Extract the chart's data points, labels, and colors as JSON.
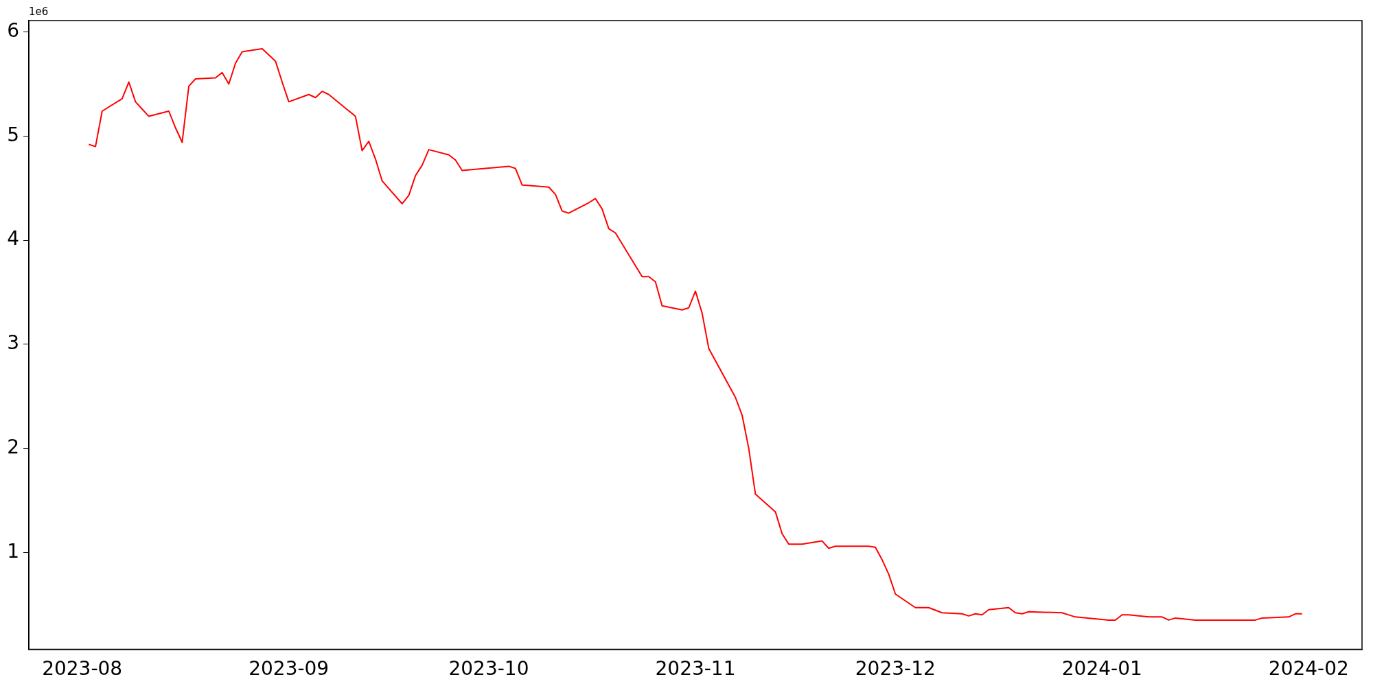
{
  "chart_data": {
    "type": "line",
    "x": [
      "2023-08-02",
      "2023-08-03",
      "2023-08-04",
      "2023-08-07",
      "2023-08-08",
      "2023-08-09",
      "2023-08-10",
      "2023-08-11",
      "2023-08-14",
      "2023-08-15",
      "2023-08-16",
      "2023-08-17",
      "2023-08-18",
      "2023-08-21",
      "2023-08-22",
      "2023-08-23",
      "2023-08-24",
      "2023-08-25",
      "2023-08-28",
      "2023-08-29",
      "2023-08-30",
      "2023-08-31",
      "2023-09-01",
      "2023-09-04",
      "2023-09-05",
      "2023-09-06",
      "2023-09-07",
      "2023-09-11",
      "2023-09-12",
      "2023-09-13",
      "2023-09-14",
      "2023-09-15",
      "2023-09-18",
      "2023-09-19",
      "2023-09-20",
      "2023-09-21",
      "2023-09-22",
      "2023-09-25",
      "2023-09-26",
      "2023-09-27",
      "2023-10-04",
      "2023-10-05",
      "2023-10-06",
      "2023-10-10",
      "2023-10-11",
      "2023-10-12",
      "2023-10-13",
      "2023-10-16",
      "2023-10-17",
      "2023-10-18",
      "2023-10-19",
      "2023-10-20",
      "2023-10-24",
      "2023-10-25",
      "2023-10-26",
      "2023-10-27",
      "2023-10-30",
      "2023-10-31",
      "2023-11-01",
      "2023-11-02",
      "2023-11-03",
      "2023-11-07",
      "2023-11-08",
      "2023-11-09",
      "2023-11-10",
      "2023-11-13",
      "2023-11-14",
      "2023-11-15",
      "2023-11-17",
      "2023-11-20",
      "2023-11-21",
      "2023-11-22",
      "2023-11-27",
      "2023-11-28",
      "2023-11-29",
      "2023-11-30",
      "2023-12-01",
      "2023-12-04",
      "2023-12-06",
      "2023-12-08",
      "2023-12-11",
      "2023-12-12",
      "2023-12-13",
      "2023-12-14",
      "2023-12-15",
      "2023-12-18",
      "2023-12-19",
      "2023-12-20",
      "2023-12-21",
      "2023-12-26",
      "2023-12-27",
      "2023-12-28",
      "2024-01-02",
      "2024-01-03",
      "2024-01-04",
      "2024-01-05",
      "2024-01-08",
      "2024-01-10",
      "2024-01-11",
      "2024-01-12",
      "2024-01-15",
      "2024-01-17",
      "2024-01-24",
      "2024-01-25",
      "2024-01-29",
      "2024-01-30",
      "2024-01-31"
    ],
    "series": [
      {
        "color": "#ff0000",
        "values": [
          4.92,
          4.9,
          5.24,
          5.36,
          5.52,
          5.33,
          5.26,
          5.19,
          5.24,
          5.08,
          4.94,
          5.48,
          5.55,
          5.56,
          5.61,
          5.5,
          5.7,
          5.81,
          5.84,
          5.78,
          5.72,
          5.52,
          5.33,
          5.4,
          5.37,
          5.43,
          5.4,
          5.19,
          4.86,
          4.95,
          4.78,
          4.57,
          4.35,
          4.43,
          4.62,
          4.72,
          4.87,
          4.82,
          4.77,
          4.67,
          4.71,
          4.69,
          4.53,
          4.51,
          4.44,
          4.28,
          4.26,
          4.36,
          4.4,
          4.3,
          4.11,
          4.07,
          3.65,
          3.65,
          3.6,
          3.37,
          3.33,
          3.35,
          3.51,
          3.3,
          2.96,
          2.49,
          2.32,
          2.0,
          1.56,
          1.39,
          1.18,
          1.08,
          1.08,
          1.11,
          1.04,
          1.06,
          1.06,
          1.05,
          0.93,
          0.79,
          0.6,
          0.47,
          0.47,
          0.42,
          0.41,
          0.39,
          0.41,
          0.4,
          0.45,
          0.47,
          0.42,
          0.41,
          0.43,
          0.42,
          0.4,
          0.38,
          0.35,
          0.35,
          0.4,
          0.4,
          0.38,
          0.38,
          0.35,
          0.37,
          0.35,
          0.35,
          0.35,
          0.37,
          0.38,
          0.41,
          0.41
        ]
      }
    ],
    "xlim": [
      "2023-07-24",
      "2024-02-09"
    ],
    "xticks": [
      {
        "value": "2023-08-01",
        "label": "2023-08"
      },
      {
        "value": "2023-09-01",
        "label": "2023-09"
      },
      {
        "value": "2023-10-01",
        "label": "2023-10"
      },
      {
        "value": "2023-11-01",
        "label": "2023-11"
      },
      {
        "value": "2023-12-01",
        "label": "2023-12"
      },
      {
        "value": "2024-01-01",
        "label": "2024-01"
      },
      {
        "value": "2024-02-01",
        "label": "2024-02"
      }
    ],
    "ylim": [
      0.07,
      6.11
    ],
    "yticks": [
      1,
      2,
      3,
      4,
      5,
      6
    ],
    "annotations": [
      "1e6"
    ],
    "grid": false,
    "legend": false,
    "marker": "none",
    "line_style": "solid"
  }
}
